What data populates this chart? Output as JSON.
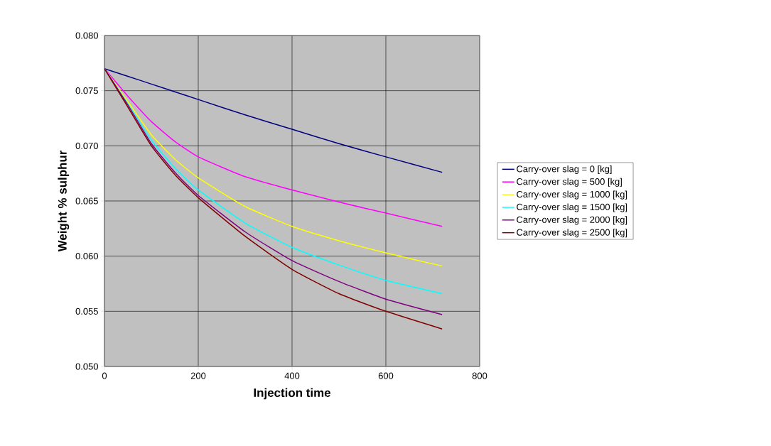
{
  "chart_data": {
    "type": "line",
    "xlabel": "Injection time",
    "ylabel": "Weight % sulphur",
    "x": [
      0,
      50,
      100,
      150,
      200,
      300,
      400,
      500,
      600,
      720
    ],
    "xlim": [
      0,
      800
    ],
    "xticks": [
      0,
      200,
      400,
      600,
      800
    ],
    "ylim": [
      0.05,
      0.08
    ],
    "yticks": [
      {
        "value": 0.05,
        "label": "0.050"
      },
      {
        "value": 0.055,
        "label": "0.055"
      },
      {
        "value": 0.06,
        "label": "0.060"
      },
      {
        "value": 0.065,
        "label": "0.065"
      },
      {
        "value": 0.07,
        "label": "0.070"
      },
      {
        "value": 0.075,
        "label": "0.075"
      },
      {
        "value": 0.08,
        "label": "0.080"
      }
    ],
    "grid": true,
    "legend": "right",
    "marker": "none",
    "line_style": "solid",
    "series": [
      {
        "name": "Carry-over slag = 0 [kg]",
        "color": "#000080",
        "values": [
          0.077,
          0.0763,
          0.0756,
          0.0749,
          0.0742,
          0.0728,
          0.0715,
          0.0702,
          0.069,
          0.0676
        ]
      },
      {
        "name": "Carry-over slag = 500 [kg]",
        "color": "#ff00ff",
        "values": [
          0.077,
          0.0745,
          0.0722,
          0.0704,
          0.069,
          0.0672,
          0.066,
          0.0649,
          0.0639,
          0.0627
        ]
      },
      {
        "name": "Carry-over slag = 1000 [kg]",
        "color": "#ffff00",
        "values": [
          0.077,
          0.074,
          0.071,
          0.0688,
          0.0671,
          0.0645,
          0.0627,
          0.0614,
          0.0603,
          0.0591
        ]
      },
      {
        "name": "Carry-over slag = 1500 [kg]",
        "color": "#00ffff",
        "values": [
          0.077,
          0.0738,
          0.0705,
          0.068,
          0.066,
          0.063,
          0.0608,
          0.0592,
          0.0578,
          0.0566
        ]
      },
      {
        "name": "Carry-over slag = 2000 [kg]",
        "color": "#800080",
        "values": [
          0.077,
          0.0737,
          0.0702,
          0.0676,
          0.0655,
          0.0622,
          0.0596,
          0.0577,
          0.0561,
          0.0547
        ]
      },
      {
        "name": "Carry-over slag = 2500 [kg]",
        "color": "#800000",
        "values": [
          0.077,
          0.0735,
          0.07,
          0.0674,
          0.0653,
          0.0618,
          0.0588,
          0.0566,
          0.055,
          0.0534
        ]
      }
    ]
  }
}
